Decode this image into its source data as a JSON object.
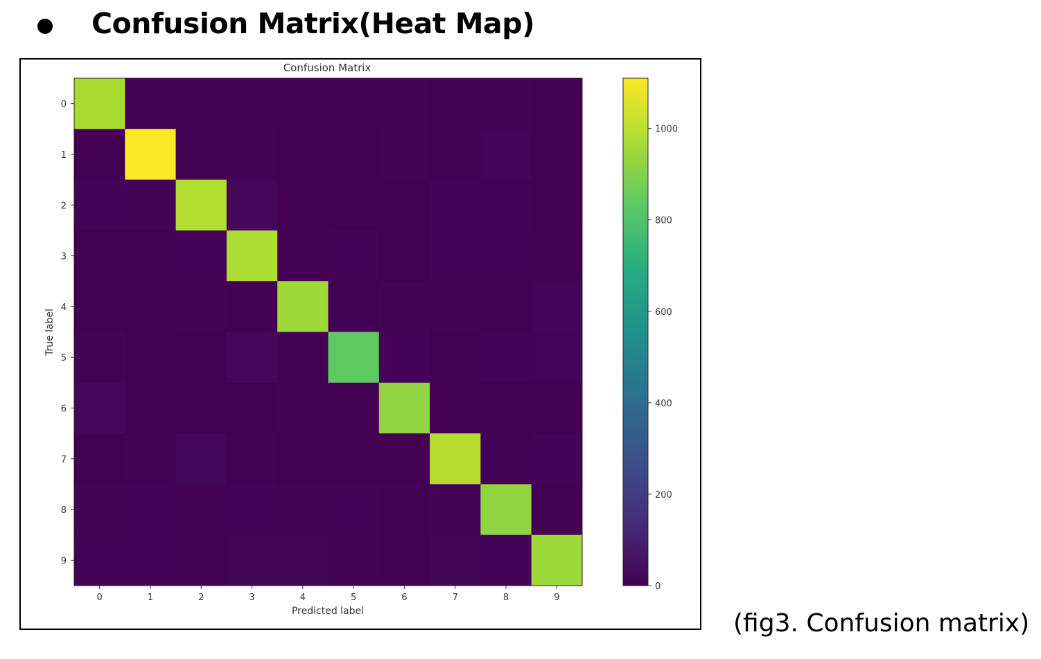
{
  "heading": "Confusion Matrix(Heat Map)",
  "caption": "(fig3. Confusion matrix)",
  "chart_data": {
    "type": "heatmap",
    "title": "Confusion Matrix",
    "xlabel": "Predicted label",
    "ylabel": "True label",
    "x_categories": [
      "0",
      "1",
      "2",
      "3",
      "4",
      "5",
      "6",
      "7",
      "8",
      "9"
    ],
    "y_categories": [
      "0",
      "1",
      "2",
      "3",
      "4",
      "5",
      "6",
      "7",
      "8",
      "9"
    ],
    "matrix": [
      [
        968,
        0,
        1,
        1,
        0,
        3,
        3,
        1,
        2,
        1
      ],
      [
        0,
        1110,
        3,
        2,
        0,
        1,
        3,
        1,
        15,
        0
      ],
      [
        6,
        5,
        985,
        20,
        1,
        1,
        1,
        7,
        6,
        0
      ],
      [
        1,
        0,
        8,
        976,
        0,
        6,
        0,
        8,
        7,
        4
      ],
      [
        1,
        1,
        3,
        0,
        951,
        0,
        5,
        4,
        2,
        15
      ],
      [
        5,
        1,
        1,
        18,
        2,
        838,
        7,
        1,
        8,
        11
      ],
      [
        18,
        3,
        1,
        1,
        3,
        4,
        927,
        0,
        1,
        0
      ],
      [
        1,
        4,
        21,
        3,
        1,
        0,
        0,
        988,
        2,
        8
      ],
      [
        5,
        6,
        5,
        8,
        4,
        6,
        3,
        9,
        925,
        3
      ],
      [
        6,
        6,
        2,
        12,
        12,
        4,
        1,
        12,
        6,
        948
      ]
    ],
    "colorbar": {
      "colormap": "viridis",
      "vmin": 0,
      "vmax": 1110,
      "ticks": [
        0,
        200,
        400,
        600,
        800,
        1000
      ]
    }
  }
}
